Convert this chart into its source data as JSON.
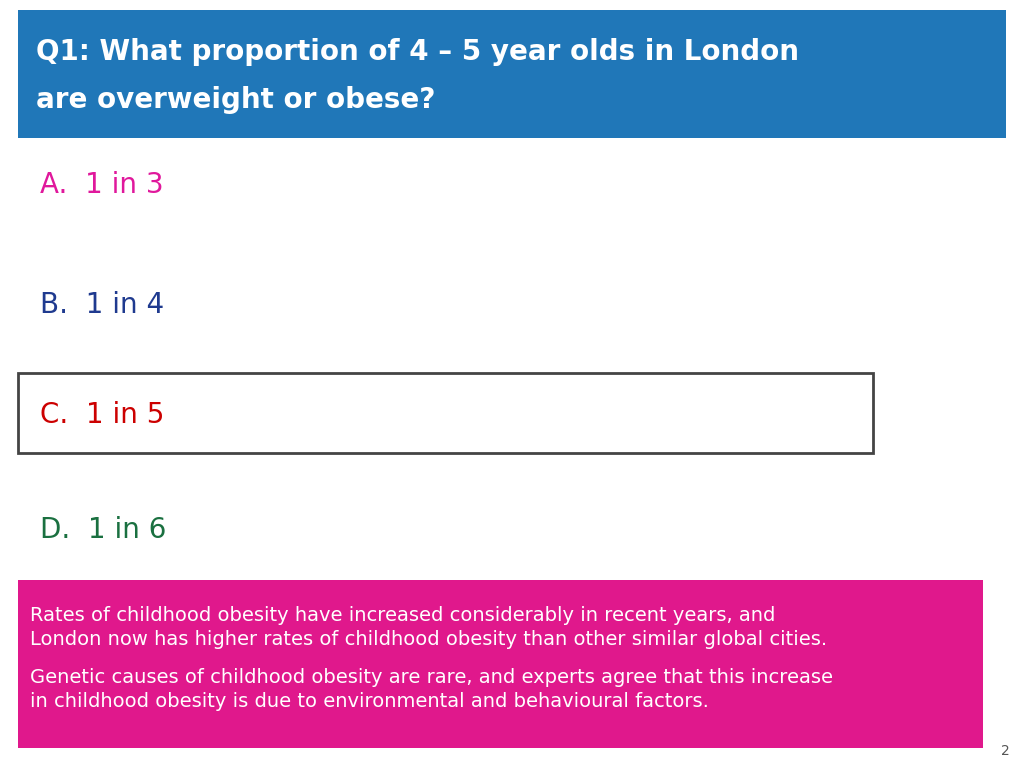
{
  "title_line1": "Q1: What proportion of 4 – 5 year olds in London",
  "title_line2": "are overweight or obese?",
  "title_bg_color": "#2077B8",
  "title_text_color": "#FFFFFF",
  "options": [
    {
      "label": "A.",
      "text": "1 in 3",
      "color": "#E0189C",
      "boxed": false
    },
    {
      "label": "B.",
      "text": "1 in 4",
      "color": "#1F3A8F",
      "boxed": false
    },
    {
      "label": "C.",
      "text": "1 in 5",
      "color": "#CC0000",
      "boxed": true
    },
    {
      "label": "D.",
      "text": "1 in 6",
      "color": "#1A7040",
      "boxed": false
    }
  ],
  "info_bg_color": "#E0188C",
  "info_text_color": "#FFFFFF",
  "info_para1_line1": "Rates of childhood obesity have increased considerably in recent years, and",
  "info_para1_line2": "London now has higher rates of childhood obesity than other similar global cities.",
  "info_para2_line1": "Genetic causes of childhood obesity are rare, and experts agree that this increase",
  "info_para2_line2": "in childhood obesity is due to environmental and behavioural factors.",
  "page_number": "2",
  "bg_color": "#FFFFFF",
  "box_border_color": "#444444",
  "title_fontsize": 20,
  "option_fontsize": 20,
  "info_fontsize": 14
}
